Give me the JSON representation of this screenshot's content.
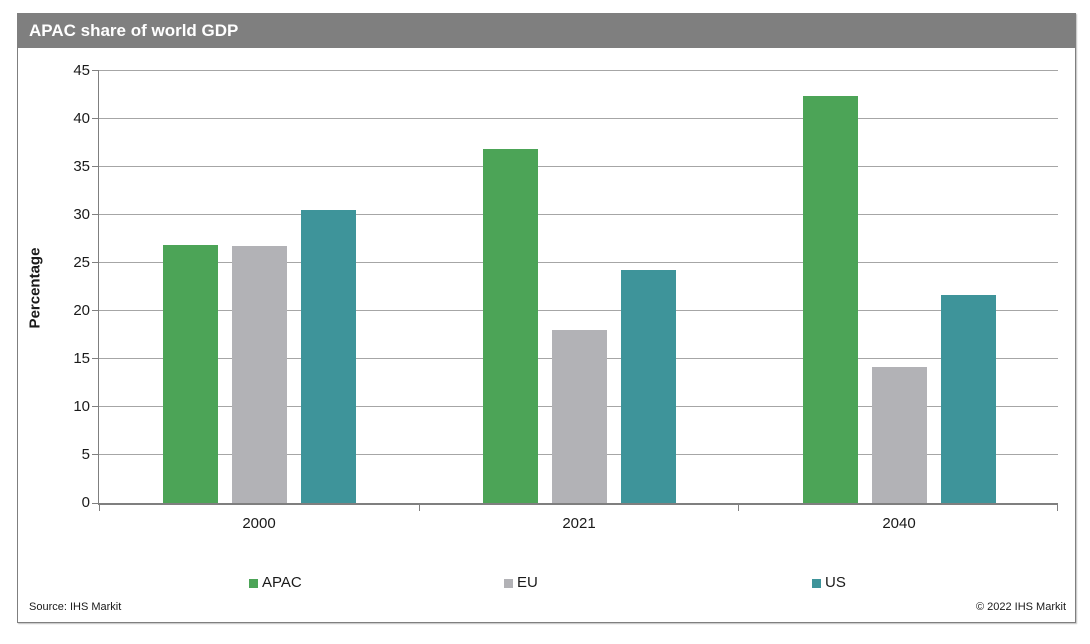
{
  "header": {
    "title": "APAC share of world GDP"
  },
  "chart_data": {
    "type": "bar",
    "title": "APAC share of world GDP",
    "categories": [
      "2000",
      "2021",
      "2040"
    ],
    "series": [
      {
        "name": "APAC",
        "color": "#4ca457",
        "values": [
          26.8,
          36.7,
          42.2
        ]
      },
      {
        "name": "EU",
        "color": "#b2b2b6",
        "values": [
          26.6,
          17.9,
          14.1
        ]
      },
      {
        "name": "US",
        "color": "#3e949a",
        "values": [
          30.4,
          24.2,
          21.6
        ]
      }
    ],
    "xlabel": "",
    "ylabel": "Percentage",
    "ylim": [
      0,
      45
    ],
    "yticks": [
      0,
      5,
      10,
      15,
      20,
      25,
      30,
      35,
      40,
      45
    ],
    "grid": "horizontal",
    "legend_position": "bottom"
  },
  "colors": {
    "title_bar_bg": "#7f7f7f",
    "title_text": "#ffffff",
    "gridline": "#a6a6a6",
    "axis": "#7f7f7f"
  },
  "footer": {
    "source": "Source:  IHS Markit",
    "copyright": "© 2022  IHS Markit"
  }
}
